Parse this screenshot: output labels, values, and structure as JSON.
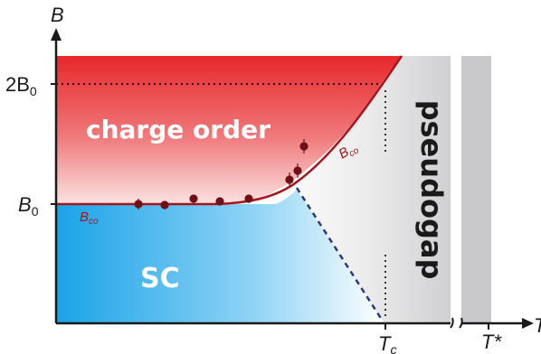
{
  "axes": {
    "y_label": "B",
    "x_label": "T",
    "y_ticks": {
      "two_b0": "2B",
      "two_b0_sub": "0",
      "b0": "B",
      "b0_sub": "0"
    },
    "x_ticks": {
      "tc": "T",
      "tc_sub": "c",
      "tstar": "T*"
    }
  },
  "regions": {
    "charge_order": "charge order",
    "sc": "SC",
    "pseudogap": "pseudogap"
  },
  "curve_labels": {
    "upper": {
      "main": "B",
      "sub": "co"
    },
    "lower": {
      "main": "B",
      "sub": "co"
    }
  },
  "colors": {
    "charge_order_red": "#e8272a",
    "sc_blue": "#1aa3e8",
    "curve": "#a8141c",
    "dashed_line": "#2b3a7a",
    "pseudogap_gray": "#c9c9cb",
    "points": "#6e1016"
  }
}
